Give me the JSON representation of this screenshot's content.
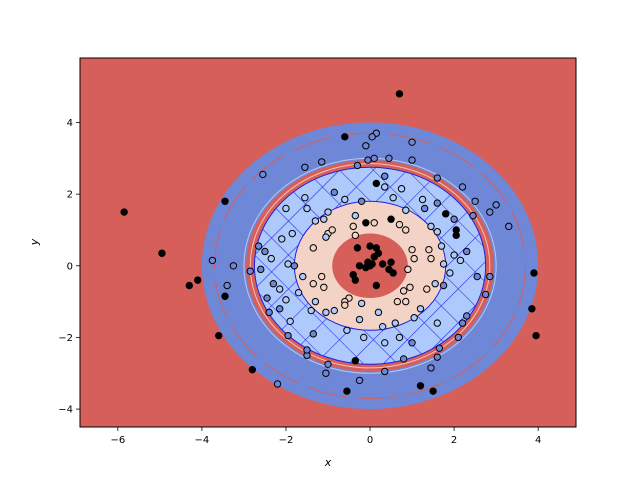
{
  "chart_data": {
    "type": "scatter",
    "title": "",
    "xlabel": "x",
    "ylabel": "y",
    "xlim": [
      -6.9,
      4.9
    ],
    "ylim": [
      -4.5,
      5.8
    ],
    "xticks": [
      -6,
      -4,
      -2,
      0,
      2,
      4
    ],
    "yticks": [
      -4,
      -2,
      0,
      2,
      4
    ],
    "xtick_labels": [
      "−6",
      "−4",
      "−2",
      "0",
      "2",
      "4"
    ],
    "ytick_labels": [
      "−4",
      "−2",
      "0",
      "2",
      "4"
    ],
    "grid": false,
    "background": {
      "description": "decision regions of a concentric-ring classifier",
      "center": [
        0,
        0
      ],
      "regions": [
        {
          "r_from": 0.0,
          "r_to": 0.9,
          "color": "#d65f5a"
        },
        {
          "r_from": 0.9,
          "r_to": 1.8,
          "color": "#f2d3c5"
        },
        {
          "r_from": 1.8,
          "r_to": 2.75,
          "color": "#aec9fb",
          "hatch": "blue diagonal cross"
        },
        {
          "r_from": 2.75,
          "r_to": 2.95,
          "color": "#d65f5a"
        },
        {
          "r_from": 2.95,
          "r_to": 4.0,
          "color": "#6f87d7"
        },
        {
          "r_from": 4.0,
          "r_to": 99,
          "color": "#d65f5a"
        }
      ]
    },
    "series": [
      {
        "class": 0,
        "color": "#000000",
        "points": [
          [
            0.7,
            4.8
          ],
          [
            -0.6,
            3.6
          ],
          [
            -5.85,
            1.5
          ],
          [
            -4.95,
            0.35
          ],
          [
            -4.1,
            -0.4
          ],
          [
            -4.3,
            -0.55
          ],
          [
            -3.45,
            1.8
          ],
          [
            -3.45,
            -0.85
          ],
          [
            -3.6,
            -1.95
          ],
          [
            -2.8,
            -2.9
          ],
          [
            -0.35,
            -2.65
          ],
          [
            -0.55,
            -3.5
          ],
          [
            1.2,
            -3.35
          ],
          [
            1.5,
            -3.5
          ],
          [
            3.85,
            -1.2
          ],
          [
            3.95,
            -1.95
          ],
          [
            3.9,
            -0.2
          ],
          [
            2.05,
            0.85
          ],
          [
            2.05,
            1.0
          ],
          [
            1.8,
            1.45
          ],
          [
            0.5,
            1.3
          ],
          [
            -0.1,
            1.2
          ],
          [
            0.15,
            2.3
          ],
          [
            0.0,
            0.55
          ],
          [
            0.15,
            0.5
          ],
          [
            -0.3,
            0.5
          ],
          [
            0.1,
            0.25
          ],
          [
            -0.05,
            0.1
          ],
          [
            0.3,
            0.05
          ],
          [
            0.5,
            0.1
          ],
          [
            0.2,
            0.35
          ],
          [
            -0.25,
            0.0
          ],
          [
            0.0,
            0.0
          ],
          [
            -0.1,
            -0.05
          ],
          [
            0.45,
            -0.1
          ],
          [
            -0.4,
            -0.25
          ],
          [
            -0.35,
            -0.4
          ],
          [
            0.55,
            -0.2
          ],
          [
            0.15,
            -0.55
          ],
          [
            0.05,
            0.05
          ]
        ]
      },
      {
        "class": 1,
        "color": "#f2d3c5",
        "points": [
          [
            1.0,
            0.45
          ],
          [
            1.05,
            0.2
          ],
          [
            0.9,
            -0.1
          ],
          [
            0.95,
            -0.6
          ],
          [
            0.85,
            -1.0
          ],
          [
            0.65,
            -1.0
          ],
          [
            1.35,
            -0.65
          ],
          [
            1.45,
            0.2
          ],
          [
            1.4,
            0.45
          ],
          [
            -0.5,
            -0.9
          ],
          [
            -0.6,
            -1.0
          ],
          [
            -0.6,
            -1.1
          ],
          [
            -1.1,
            -0.6
          ],
          [
            -1.35,
            -0.5
          ],
          [
            -1.35,
            0.5
          ],
          [
            -1.0,
            0.9
          ],
          [
            -0.9,
            1.0
          ],
          [
            -0.4,
            1.1
          ],
          [
            0.1,
            1.2
          ],
          [
            0.85,
            1.0
          ],
          [
            0.7,
            1.15
          ],
          [
            0.8,
            -0.7
          ],
          [
            -1.15,
            -0.3
          ],
          [
            -0.35,
            0.85
          ]
        ]
      },
      {
        "class": 2,
        "color": "#aec9fb",
        "points": [
          [
            -2.0,
            1.6
          ],
          [
            -1.5,
            1.6
          ],
          [
            -1.3,
            1.25
          ],
          [
            -1.1,
            1.3
          ],
          [
            -1.0,
            1.5
          ],
          [
            -0.6,
            1.85
          ],
          [
            -0.35,
            1.4
          ],
          [
            0.35,
            2.2
          ],
          [
            0.75,
            2.15
          ],
          [
            0.85,
            1.55
          ],
          [
            1.25,
            1.85
          ],
          [
            1.45,
            1.1
          ],
          [
            1.6,
            0.95
          ],
          [
            1.7,
            0.55
          ],
          [
            2.0,
            0.3
          ],
          [
            2.15,
            0.15
          ],
          [
            1.75,
            0.05
          ],
          [
            1.9,
            -0.2
          ],
          [
            1.55,
            -0.5
          ],
          [
            1.2,
            -1.2
          ],
          [
            1.05,
            -1.45
          ],
          [
            0.6,
            -1.6
          ],
          [
            0.3,
            -1.7
          ],
          [
            -0.25,
            -1.5
          ],
          [
            -0.55,
            -1.8
          ],
          [
            -0.85,
            -1.25
          ],
          [
            -1.05,
            -1.3
          ],
          [
            -1.4,
            -1.25
          ],
          [
            -1.9,
            -1.55
          ],
          [
            -2.0,
            -0.95
          ],
          [
            -2.15,
            -0.65
          ],
          [
            -1.95,
            0.05
          ],
          [
            -2.35,
            0.2
          ],
          [
            -2.1,
            0.75
          ],
          [
            -1.85,
            0.9
          ],
          [
            -1.6,
            -0.3
          ],
          [
            -1.7,
            -0.75
          ],
          [
            -1.3,
            -1.0
          ],
          [
            -0.2,
            -1.05
          ],
          [
            0.2,
            -1.3
          ],
          [
            0.7,
            -2.0
          ],
          [
            0.35,
            -2.15
          ],
          [
            -0.15,
            -2.0
          ],
          [
            1.6,
            -1.6
          ],
          [
            -1.05,
            0.8
          ],
          [
            -1.55,
            1.9
          ],
          [
            0.55,
            1.9
          ]
        ]
      },
      {
        "class": 3,
        "color": "#6f87d7",
        "points": [
          [
            -1.55,
            2.75
          ],
          [
            -1.15,
            2.9
          ],
          [
            -0.85,
            2.05
          ],
          [
            -0.3,
            2.8
          ],
          [
            -0.1,
            3.35
          ],
          [
            -0.05,
            2.95
          ],
          [
            0.1,
            3.0
          ],
          [
            0.45,
            3.0
          ],
          [
            0.35,
            2.5
          ],
          [
            1.0,
            2.95
          ],
          [
            1.0,
            3.45
          ],
          [
            0.15,
            3.7
          ],
          [
            1.6,
            2.45
          ],
          [
            1.6,
            1.75
          ],
          [
            2.2,
            2.2
          ],
          [
            2.5,
            1.8
          ],
          [
            2.85,
            1.5
          ],
          [
            3.0,
            1.7
          ],
          [
            3.3,
            1.1
          ],
          [
            2.3,
            0.4
          ],
          [
            2.55,
            -0.3
          ],
          [
            2.85,
            -0.3
          ],
          [
            2.3,
            -1.4
          ],
          [
            2.2,
            -1.6
          ],
          [
            2.1,
            -2.0
          ],
          [
            1.6,
            -2.55
          ],
          [
            1.45,
            -2.85
          ],
          [
            0.8,
            -2.6
          ],
          [
            0.35,
            -2.95
          ],
          [
            -0.25,
            -3.2
          ],
          [
            -1.0,
            -2.75
          ],
          [
            -1.05,
            -3.0
          ],
          [
            -1.5,
            -2.5
          ],
          [
            -1.5,
            -2.35
          ],
          [
            -1.95,
            -1.95
          ],
          [
            -2.15,
            -1.2
          ],
          [
            -2.45,
            -0.9
          ],
          [
            -2.4,
            -1.3
          ],
          [
            -3.25,
            0.0
          ],
          [
            -2.85,
            -0.15
          ],
          [
            -2.6,
            -0.1
          ],
          [
            -2.5,
            0.4
          ],
          [
            -3.75,
            0.15
          ],
          [
            -3.4,
            -0.55
          ],
          [
            -2.55,
            2.55
          ],
          [
            -2.2,
            -3.3
          ],
          [
            -1.8,
            0.0
          ],
          [
            1.75,
            -0.55
          ],
          [
            -1.35,
            -1.9
          ],
          [
            1.0,
            -2.15
          ],
          [
            2.45,
            1.4
          ],
          [
            -0.2,
            1.8
          ],
          [
            1.3,
            1.6
          ],
          [
            -2.65,
            0.55
          ],
          [
            2.0,
            1.3
          ],
          [
            -2.3,
            -0.5
          ],
          [
            0.05,
            3.6
          ],
          [
            1.65,
            -2.3
          ],
          [
            2.75,
            -0.8
          ]
        ]
      }
    ]
  }
}
